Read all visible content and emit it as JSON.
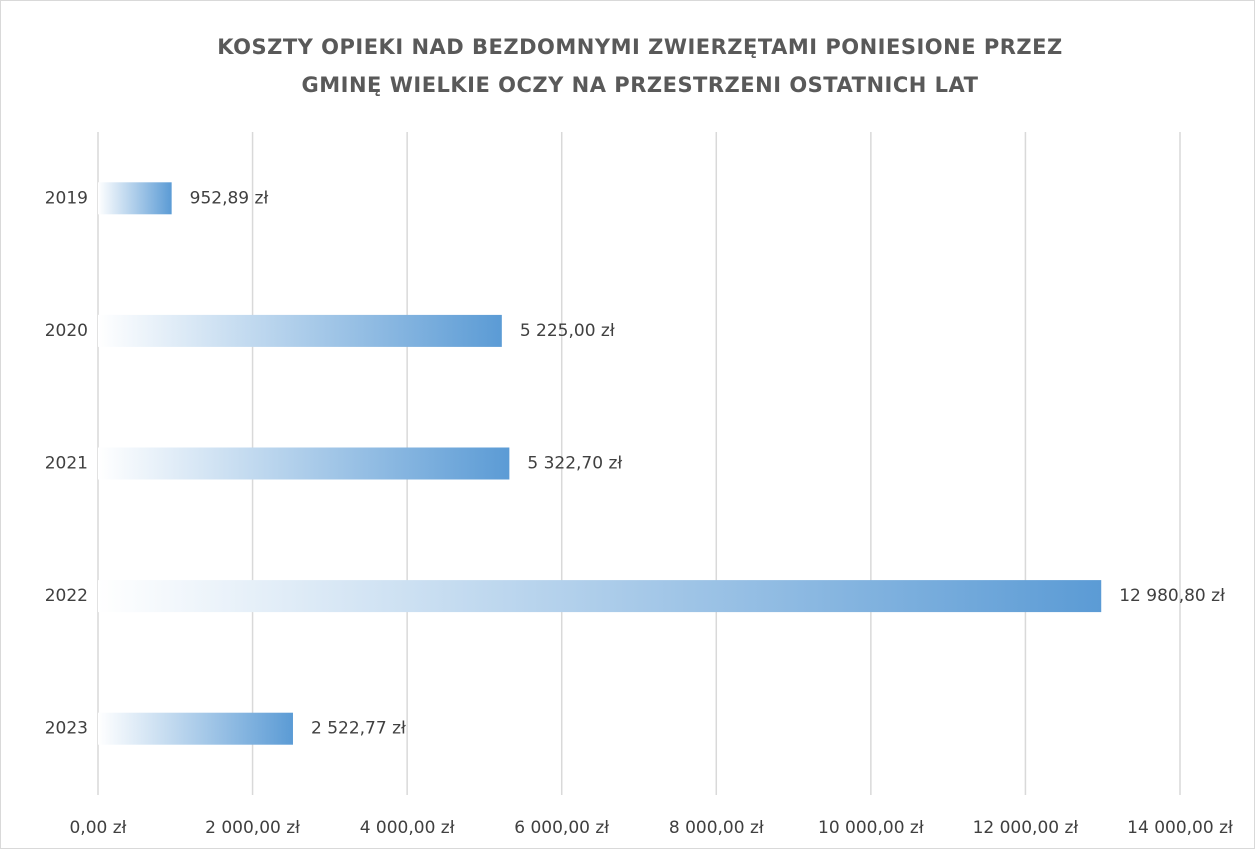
{
  "chart_data": {
    "type": "barh",
    "title": [
      "KOSZTY OPIEKI NAD BEZDOMNYMI ZWIERZĘTAMI PONIESIONE PRZEZ",
      "GMINĘ WIELKIE OCZY NA PRZESTRZENI OSTATNICH LAT"
    ],
    "categories": [
      "2019",
      "2020",
      "2021",
      "2022",
      "2023"
    ],
    "values": [
      952.89,
      5225.0,
      5322.7,
      12980.8,
      2522.77
    ],
    "value_labels": [
      "952,89 zł",
      "5 225,00 zł",
      "5 322,70 zł",
      "12 980,80 zł",
      "2 522,77 zł"
    ],
    "color": "#5b9bd5",
    "xlim": [
      0,
      14000
    ],
    "xticks": [
      {
        "value": 0,
        "label": "0,00 zł"
      },
      {
        "value": 2000,
        "label": "2 000,00 zł"
      },
      {
        "value": 4000,
        "label": "4 000,00 zł"
      },
      {
        "value": 6000,
        "label": "6 000,00 zł"
      },
      {
        "value": 8000,
        "label": "8 000,00 zł"
      },
      {
        "value": 10000,
        "label": "10 000,00 zł"
      },
      {
        "value": 12000,
        "label": "12 000,00 zł"
      },
      {
        "value": 14000,
        "label": "14 000,00 zł"
      }
    ],
    "grid": true
  }
}
